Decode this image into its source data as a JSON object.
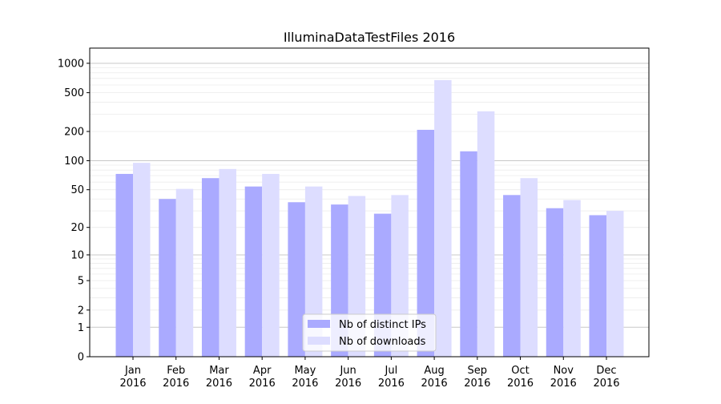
{
  "chart_data": {
    "type": "bar",
    "title": "IlluminaDataTestFiles 2016",
    "xlabel": "",
    "ylabel": "",
    "yscale": "symlog",
    "ylim": [
      0,
      1430
    ],
    "grid": true,
    "legend_position": "bottom-center",
    "categories": [
      "Jan\n2016",
      "Feb\n2016",
      "Mar\n2016",
      "Apr\n2016",
      "May\n2016",
      "Jun\n2016",
      "Jul\n2016",
      "Aug\n2016",
      "Sep\n2016",
      "Oct\n2016",
      "Nov\n2016",
      "Dec\n2016"
    ],
    "yticks": [
      0,
      1,
      2,
      5,
      10,
      20,
      50,
      100,
      200,
      500,
      1000
    ],
    "series": [
      {
        "name": "Nb of distinct IPs",
        "color": "#aaaaff",
        "values": [
          73,
          40,
          66,
          54,
          37,
          35,
          28,
          208,
          125,
          44,
          32,
          27
        ]
      },
      {
        "name": "Nb of downloads",
        "color": "#ddddff",
        "values": [
          95,
          51,
          82,
          73,
          54,
          43,
          44,
          673,
          322,
          66,
          39,
          30
        ]
      }
    ]
  }
}
